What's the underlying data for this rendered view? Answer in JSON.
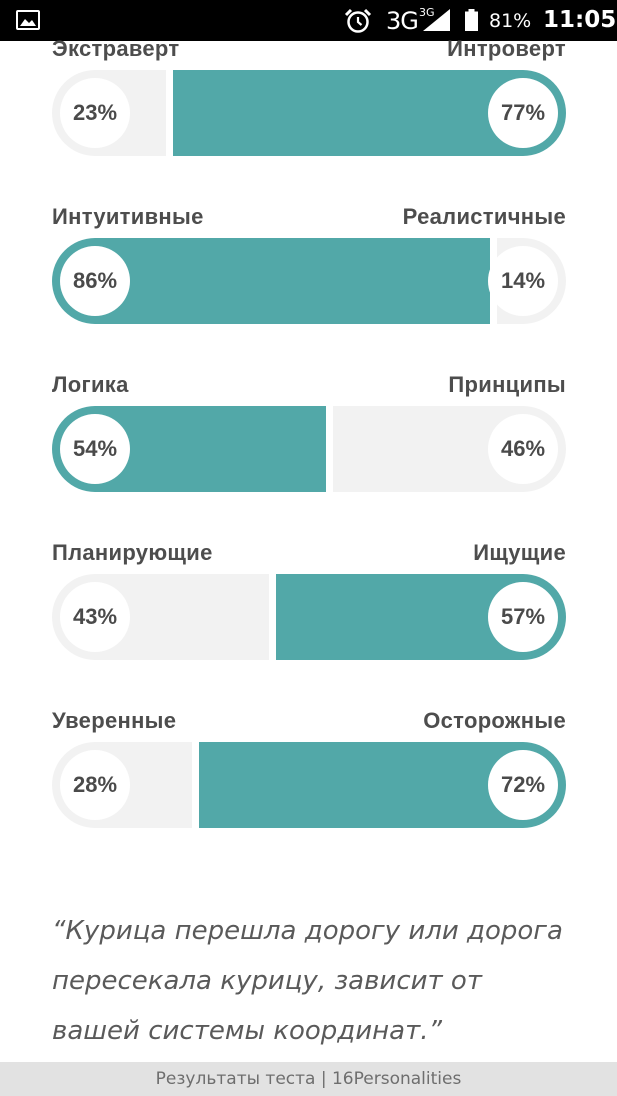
{
  "status_bar": {
    "gallery_icon": "image-notification-icon",
    "alarm_icon": "alarm-clock-icon",
    "network": "3G",
    "network_sup": "3G",
    "signal_icon": "cell-signal-icon",
    "battery_icon": "battery-icon",
    "battery_percent": "81%",
    "time": "11:05"
  },
  "scales": [
    {
      "left_label": "Экстраверт",
      "right_label": "Интроверт",
      "left_value": "23%",
      "right_value": "77%",
      "left_fraction": 0.23,
      "dominant": "right"
    },
    {
      "left_label": "Интуитивные",
      "right_label": "Реалистичные",
      "left_value": "86%",
      "right_value": "14%",
      "left_fraction": 0.86,
      "dominant": "left"
    },
    {
      "left_label": "Логика",
      "right_label": "Принципы",
      "left_value": "54%",
      "right_value": "46%",
      "left_fraction": 0.54,
      "dominant": "left"
    },
    {
      "left_label": "Планирующие",
      "right_label": "Ищущие",
      "left_value": "43%",
      "right_value": "57%",
      "left_fraction": 0.43,
      "dominant": "right"
    },
    {
      "left_label": "Уверенные",
      "right_label": "Осторожные",
      "left_value": "28%",
      "right_value": "72%",
      "left_fraction": 0.28,
      "dominant": "right"
    }
  ],
  "quote": "“Курица перешла дорогу или дорога пересекала курицу, зависит от вашей системы координат.”",
  "footer": "Результаты теста | 16Personalities",
  "colors": {
    "teal": "#52a8a8",
    "light": "#f2f2f2"
  }
}
